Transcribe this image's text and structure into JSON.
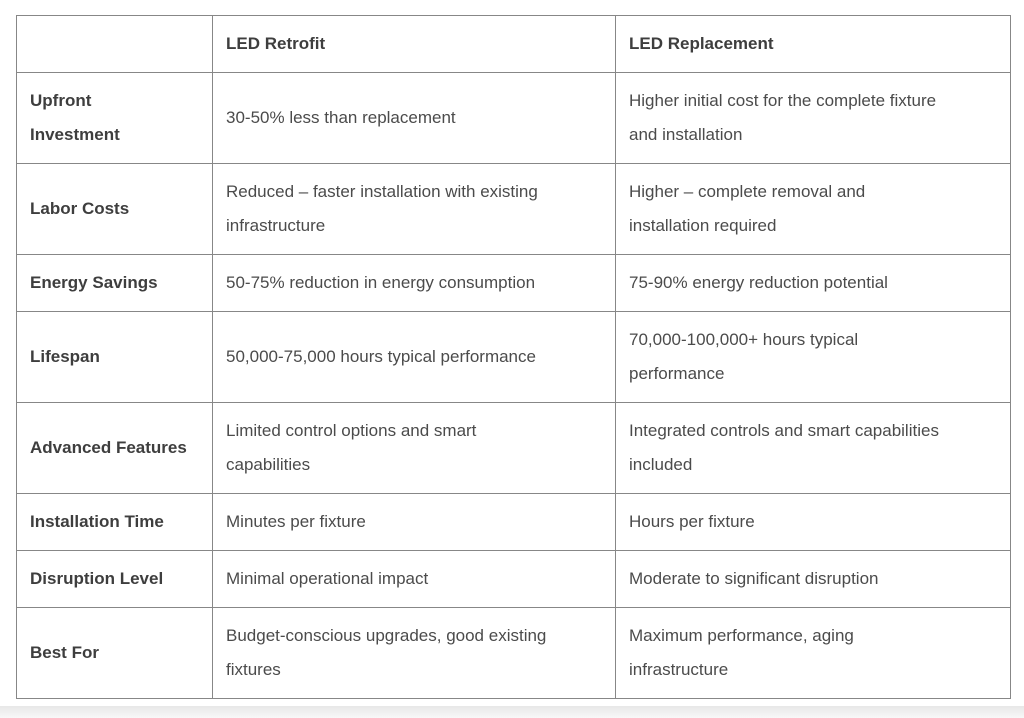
{
  "colors": {
    "border": "#878787",
    "label_text": "#3e3e3e",
    "body_text": "#4b4b4b",
    "footer_strip": "#eeeeee"
  },
  "table": {
    "header": {
      "corner": "",
      "retrofit": "LED Retrofit",
      "replacement": "LED Replacement"
    },
    "rows": [
      {
        "label": "Upfront\nInvestment",
        "retrofit": "30-50% less than replacement",
        "replacement": "Higher initial cost for the complete fixture\nand installation"
      },
      {
        "label": "Labor Costs",
        "retrofit": "Reduced – faster installation with existing\ninfrastructure",
        "replacement": "Higher – complete removal and\ninstallation required"
      },
      {
        "label": "Energy Savings",
        "retrofit": "50-75% reduction in energy consumption",
        "replacement": "75-90% energy reduction potential"
      },
      {
        "label": "Lifespan",
        "retrofit": "50,000-75,000 hours typical performance",
        "replacement": "70,000-100,000+ hours typical\nperformance"
      },
      {
        "label": "Advanced Features",
        "retrofit": "Limited control options and smart\ncapabilities",
        "replacement": "Integrated controls and smart capabilities\nincluded"
      },
      {
        "label": "Installation Time",
        "retrofit": "Minutes per fixture",
        "replacement": "Hours per fixture"
      },
      {
        "label": "Disruption Level",
        "retrofit": "Minimal operational impact",
        "replacement": "Moderate to significant disruption"
      },
      {
        "label": "Best For",
        "retrofit": "Budget-conscious upgrades, good existing\nfixtures",
        "replacement": "Maximum performance, aging\ninfrastructure"
      }
    ]
  }
}
